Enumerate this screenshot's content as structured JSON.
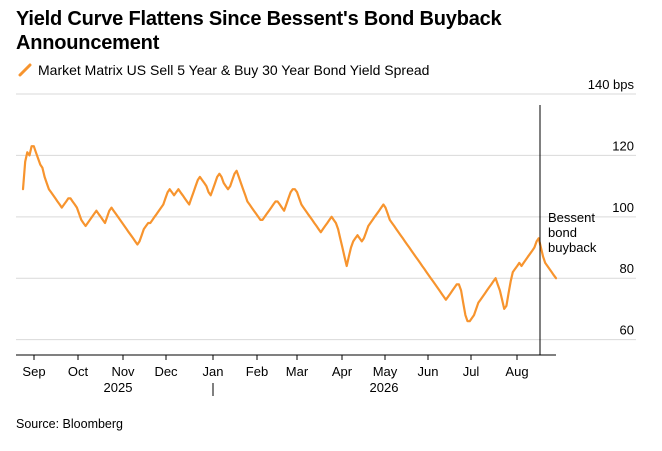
{
  "title": "Yield Curve Flattens Since Bessent's Bond Buyback Announcement",
  "legend": {
    "label": "Market Matrix US Sell 5 Year & Buy 30 Year Bond Yield Spread",
    "color": "#f7942e"
  },
  "source": "Source: Bloomberg",
  "chart_data": {
    "type": "line",
    "ylim": [
      55,
      140
    ],
    "y_ticks": [
      60,
      80,
      100,
      120,
      140
    ],
    "y_tick_labels": [
      "60",
      "80",
      "100",
      "120",
      "140 bps"
    ],
    "x_tick_labels": [
      "Sep",
      "Oct",
      "Nov",
      "Dec",
      "Jan",
      "Feb",
      "Mar",
      "Apr",
      "May",
      "Jun",
      "Jul",
      "Aug"
    ],
    "year_labels": [
      "2025",
      "2026"
    ],
    "grid": true,
    "line_color": "#f7942e",
    "annotation": {
      "text": [
        "Bessent",
        "bond",
        "buyback"
      ]
    },
    "series": [
      {
        "values": [
          109,
          118,
          121,
          120,
          123,
          123,
          121,
          119,
          117,
          116,
          113,
          111,
          109,
          108,
          107,
          106,
          105,
          104,
          103,
          104,
          105,
          106,
          106,
          105,
          104,
          103,
          101,
          99,
          98,
          97,
          98,
          99,
          100,
          101,
          102,
          101,
          100,
          99,
          98,
          100,
          102,
          103,
          102,
          101,
          100,
          99,
          98,
          97,
          96,
          95,
          94,
          93,
          92,
          91,
          92,
          94,
          96,
          97,
          98,
          98,
          99,
          100,
          101,
          102,
          103,
          104,
          106,
          108,
          109,
          108,
          107,
          108,
          109,
          108,
          107,
          106,
          105,
          104,
          106,
          108,
          110,
          112,
          113,
          112,
          111,
          110,
          108,
          107,
          109,
          111,
          113,
          114,
          113,
          111,
          110,
          109,
          110,
          112,
          114,
          115,
          113,
          111,
          109,
          107,
          105,
          104,
          103,
          102,
          101,
          100,
          99,
          99,
          100,
          101,
          102,
          103,
          104,
          105,
          105,
          104,
          103,
          102,
          104,
          106,
          108,
          109,
          109,
          108,
          106,
          104,
          103,
          102,
          101,
          100,
          99,
          98,
          97,
          96,
          95,
          96,
          97,
          98,
          99,
          100,
          99,
          98,
          96,
          93,
          90,
          87,
          84,
          87,
          90,
          92,
          93,
          94,
          93,
          92,
          93,
          95,
          97,
          98,
          99,
          100,
          101,
          102,
          103,
          104,
          103,
          101,
          99,
          98,
          97,
          96,
          95,
          94,
          93,
          92,
          91,
          90,
          89,
          88,
          87,
          86,
          85,
          84,
          83,
          82,
          81,
          80,
          79,
          78,
          77,
          76,
          75,
          74,
          73,
          74,
          75,
          76,
          77,
          78,
          78,
          76,
          72,
          68,
          66,
          66,
          67,
          68,
          70,
          72,
          73,
          74,
          75,
          76,
          77,
          78,
          79,
          80,
          78,
          76,
          73,
          70,
          71,
          75,
          79,
          82,
          83,
          84,
          85,
          84,
          85,
          86,
          87,
          88,
          89,
          90,
          92,
          93,
          90,
          87,
          85,
          84,
          83,
          82,
          81,
          80
        ]
      }
    ]
  }
}
